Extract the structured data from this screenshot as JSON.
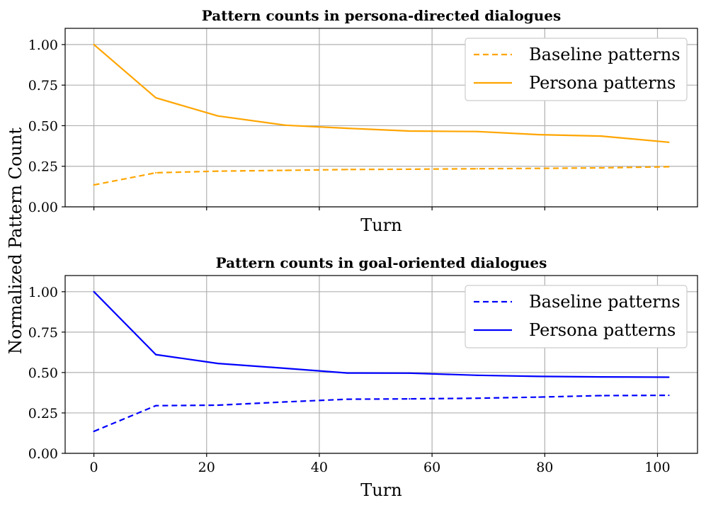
{
  "figure": {
    "ylabel": "Normalized Pattern Count"
  },
  "chart_data": [
    {
      "type": "line",
      "title": "Pattern counts in persona-directed dialogues",
      "xlabel": "Turn",
      "ylabel": "",
      "xlim": [
        -5.1,
        107.1
      ],
      "ylim": [
        0.0,
        1.1
      ],
      "x_ticks": [],
      "x_tick_labels": [],
      "x_tick_marks": [
        0,
        20,
        40,
        60,
        80,
        100
      ],
      "y_ticks": [
        0.0,
        0.25,
        0.5,
        0.75,
        1.0
      ],
      "y_tick_labels": [
        "0.00",
        "0.25",
        "0.50",
        "0.75",
        "1.00"
      ],
      "grid": true,
      "legend_position": "top-right",
      "series": [
        {
          "name": "Baseline patterns",
          "color": "#ffa500",
          "style": "dashed",
          "x": [
            0,
            11,
            22,
            34,
            45,
            56,
            68,
            79,
            90,
            102
          ],
          "y": [
            0.135,
            0.21,
            0.22,
            0.225,
            0.23,
            0.232,
            0.235,
            0.237,
            0.24,
            0.247
          ]
        },
        {
          "name": "Persona patterns",
          "color": "#ffa500",
          "style": "solid",
          "x": [
            0,
            11,
            22,
            34,
            45,
            56,
            68,
            79,
            90,
            102
          ],
          "y": [
            1.0,
            0.672,
            0.56,
            0.503,
            0.484,
            0.467,
            0.464,
            0.445,
            0.436,
            0.398
          ]
        }
      ]
    },
    {
      "type": "line",
      "title": "Pattern counts in goal-oriented dialogues",
      "xlabel": "Turn",
      "ylabel": "",
      "xlim": [
        -5.1,
        107.1
      ],
      "ylim": [
        0.0,
        1.1
      ],
      "x_ticks": [
        0,
        20,
        40,
        60,
        80,
        100
      ],
      "x_tick_labels": [
        "0",
        "20",
        "40",
        "60",
        "80",
        "100"
      ],
      "x_tick_marks": [
        0,
        20,
        40,
        60,
        80,
        100
      ],
      "y_ticks": [
        0.0,
        0.25,
        0.5,
        0.75,
        1.0
      ],
      "y_tick_labels": [
        "0.00",
        "0.25",
        "0.50",
        "0.75",
        "1.00"
      ],
      "grid": true,
      "legend_position": "top-right",
      "series": [
        {
          "name": "Baseline patterns",
          "color": "#0000ff",
          "style": "dashed",
          "x": [
            0,
            11,
            22,
            34,
            45,
            56,
            68,
            79,
            90,
            102
          ],
          "y": [
            0.136,
            0.295,
            0.298,
            0.318,
            0.335,
            0.337,
            0.341,
            0.348,
            0.357,
            0.359
          ]
        },
        {
          "name": "Persona patterns",
          "color": "#0000ff",
          "style": "solid",
          "x": [
            0,
            11,
            22,
            34,
            45,
            56,
            68,
            79,
            90,
            102
          ],
          "y": [
            1.0,
            0.611,
            0.556,
            0.526,
            0.497,
            0.496,
            0.483,
            0.476,
            0.473,
            0.471
          ]
        }
      ]
    }
  ]
}
